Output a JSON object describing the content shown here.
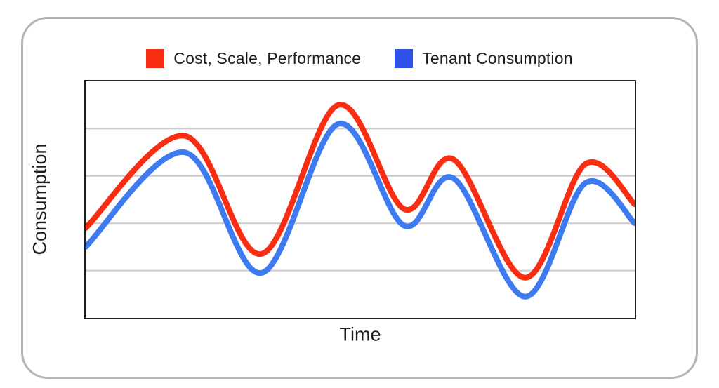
{
  "page": {
    "background": "#ffffff",
    "frame_border_color": "#b5b5b5",
    "plot_border_color": "#1f1f1f",
    "gridline_color": "#cccccc",
    "text_color": "#1c1c1c"
  },
  "legend": [
    {
      "label": "Cost, Scale, Performance",
      "color": "#f92d12"
    },
    {
      "label": "Tenant Consumption",
      "color": "#2e51e8"
    }
  ],
  "chart_data": {
    "type": "line",
    "title": "",
    "xlabel": "Time",
    "ylabel": "Consumption",
    "x": [
      0,
      18,
      32,
      46,
      58,
      67,
      80,
      91,
      100
    ],
    "series": [
      {
        "name": "Cost, Scale, Performance",
        "color": "#f92d12",
        "line_width": 8,
        "values": [
          38,
          77,
          27,
          90,
          46,
          67,
          17,
          65,
          48
        ]
      },
      {
        "name": "Tenant Consumption",
        "color": "#3e7bf0",
        "line_width": 8,
        "values": [
          30,
          70,
          19,
          82,
          39,
          59,
          9,
          57,
          40
        ]
      }
    ],
    "xlim": [
      0,
      100
    ],
    "ylim": [
      0,
      100
    ],
    "grid": "horizontal",
    "gridline_values": [
      20,
      40,
      60,
      80
    ],
    "legend_position": "top",
    "x_tick_labels": [],
    "y_tick_labels": []
  }
}
